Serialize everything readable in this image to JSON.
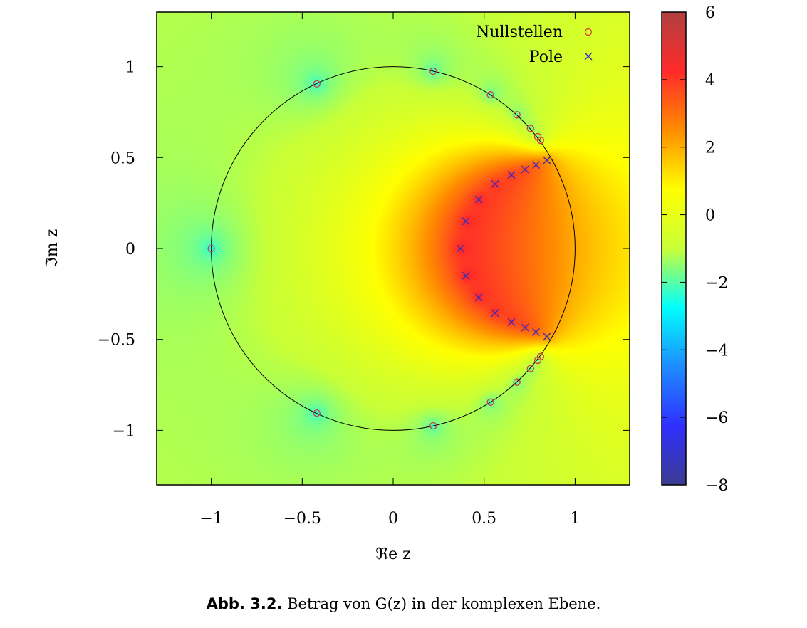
{
  "chart_data": {
    "type": "heatmap",
    "xlabel": "ℜe z",
    "ylabel": "ℑm z",
    "xlim": [
      -1.3,
      1.3
    ],
    "ylim": [
      -1.3,
      1.3
    ],
    "x_ticks": [
      -1,
      -0.5,
      0,
      0.5,
      1
    ],
    "y_ticks": [
      -1,
      -0.5,
      0,
      0.5,
      1
    ],
    "x_tick_labels": [
      "−1",
      "−0.5",
      "0",
      "0.5",
      "1"
    ],
    "y_tick_labels": [
      "−1",
      "−0.5",
      "0",
      "0.5",
      "1"
    ],
    "colorbar": {
      "min": -8,
      "max": 6,
      "ticks": [
        6,
        4,
        2,
        0,
        -2,
        -4,
        -6,
        -8
      ],
      "tick_labels": [
        "6",
        "4",
        "2",
        "0",
        "−2",
        "−4",
        "−6",
        "−8"
      ],
      "colormap": [
        "#3b3c8f",
        "#2f2fff",
        "#1e8cff",
        "#00ffff",
        "#c8ff37",
        "#ffff00",
        "#ff8c00",
        "#ff2a2a",
        "#b04040"
      ]
    },
    "unit_circle": true,
    "grid": false,
    "legend_position": "top-right",
    "series": [
      {
        "name": "Nullstellen",
        "marker": "circle",
        "color": "#d63a3a",
        "points": [
          [
            -1.0,
            0.0
          ],
          [
            -0.42,
            0.905
          ],
          [
            -0.42,
            -0.905
          ],
          [
            0.22,
            0.975
          ],
          [
            0.22,
            -0.975
          ],
          [
            0.535,
            0.845
          ],
          [
            0.535,
            -0.845
          ],
          [
            0.68,
            0.735
          ],
          [
            0.68,
            -0.735
          ],
          [
            0.755,
            0.66
          ],
          [
            0.755,
            -0.66
          ],
          [
            0.795,
            0.615
          ],
          [
            0.795,
            -0.615
          ],
          [
            0.81,
            0.595
          ],
          [
            0.81,
            -0.595
          ]
        ]
      },
      {
        "name": "Pole",
        "marker": "cross",
        "color": "#2f2fbf",
        "points": [
          [
            0.37,
            0.0
          ],
          [
            0.4,
            0.15
          ],
          [
            0.4,
            -0.15
          ],
          [
            0.47,
            0.27
          ],
          [
            0.47,
            -0.27
          ],
          [
            0.56,
            0.355
          ],
          [
            0.56,
            -0.355
          ],
          [
            0.65,
            0.405
          ],
          [
            0.65,
            -0.405
          ],
          [
            0.725,
            0.435
          ],
          [
            0.725,
            -0.435
          ],
          [
            0.785,
            0.46
          ],
          [
            0.785,
            -0.46
          ],
          [
            0.845,
            0.485
          ],
          [
            0.845,
            -0.485
          ]
        ]
      }
    ]
  },
  "caption": {
    "label": "Abb. 3.2.",
    "text": "Betrag von G(z) in der komplexen Ebene."
  }
}
